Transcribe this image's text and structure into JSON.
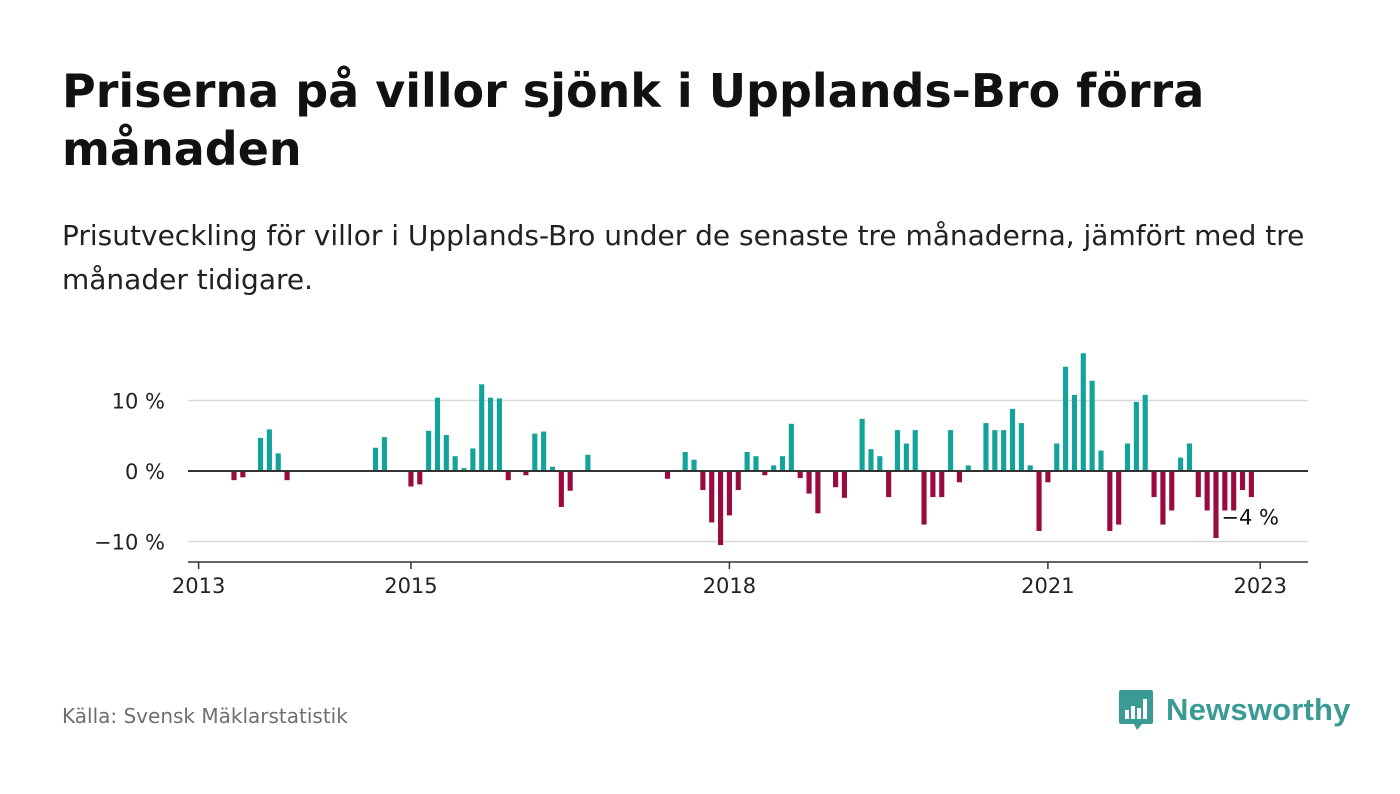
{
  "header": {
    "title": "Priserna på villor sjönk i Upplands-Bro förra månaden",
    "subtitle": "Prisutveckling för villor i Upplands-Bro under de senaste tre månaderna, jämfört med tre månader tidigare."
  },
  "footer": {
    "source": "Källa: Svensk Mäklarstatistik",
    "brand": "Newsworthy",
    "brand_icon": "bar-chart-speech-bubble-icon"
  },
  "colors": {
    "positive": "#14a39a",
    "negative": "#9b0a3e",
    "grid": "#d9d9d9",
    "zero_line": "#333333",
    "brand": "#3a9a94"
  },
  "chart_data": {
    "type": "bar",
    "title": "",
    "xlabel": "",
    "ylabel": "",
    "ylim": [
      -13,
      17
    ],
    "yticks": [
      {
        "value": -10,
        "label": "−10 %"
      },
      {
        "value": 0,
        "label": "0 %"
      },
      {
        "value": 10,
        "label": "10 %"
      }
    ],
    "xticks": [
      {
        "value": 2013.0,
        "label": "2013"
      },
      {
        "value": 2015.0,
        "label": "2015"
      },
      {
        "value": 2018.0,
        "label": "2018"
      },
      {
        "value": 2021.0,
        "label": "2021"
      },
      {
        "value": 2023.0,
        "label": "2023"
      }
    ],
    "grid": true,
    "annotation": {
      "text": "−4 %"
    },
    "series": [
      {
        "points": [
          {
            "x": "2013-05",
            "y": -1.3
          },
          {
            "x": "2013-06",
            "y": -0.9
          },
          {
            "x": "2013-08",
            "y": 4.7
          },
          {
            "x": "2013-09",
            "y": 5.9
          },
          {
            "x": "2013-10",
            "y": 2.5
          },
          {
            "x": "2013-11",
            "y": -1.3
          },
          {
            "x": "2014-09",
            "y": 3.3
          },
          {
            "x": "2014-10",
            "y": 4.8
          },
          {
            "x": "2015-01",
            "y": -2.2
          },
          {
            "x": "2015-02",
            "y": -1.9
          },
          {
            "x": "2015-03",
            "y": 5.7
          },
          {
            "x": "2015-04",
            "y": 10.4
          },
          {
            "x": "2015-05",
            "y": 5.1
          },
          {
            "x": "2015-06",
            "y": 2.1
          },
          {
            "x": "2015-07",
            "y": 0.4
          },
          {
            "x": "2015-08",
            "y": 3.2
          },
          {
            "x": "2015-09",
            "y": 12.3
          },
          {
            "x": "2015-10",
            "y": 10.4
          },
          {
            "x": "2015-11",
            "y": 10.3
          },
          {
            "x": "2015-12",
            "y": -1.3
          },
          {
            "x": "2016-02",
            "y": -0.6
          },
          {
            "x": "2016-03",
            "y": 5.3
          },
          {
            "x": "2016-04",
            "y": 5.6
          },
          {
            "x": "2016-05",
            "y": 0.6
          },
          {
            "x": "2016-06",
            "y": -5.1
          },
          {
            "x": "2016-07",
            "y": -2.8
          },
          {
            "x": "2016-09",
            "y": 2.3
          },
          {
            "x": "2017-06",
            "y": -1.1
          },
          {
            "x": "2017-08",
            "y": 2.7
          },
          {
            "x": "2017-09",
            "y": 1.6
          },
          {
            "x": "2017-10",
            "y": -2.7
          },
          {
            "x": "2017-11",
            "y": -7.3
          },
          {
            "x": "2017-12",
            "y": -10.5
          },
          {
            "x": "2018-01",
            "y": -6.3
          },
          {
            "x": "2018-02",
            "y": -2.7
          },
          {
            "x": "2018-03",
            "y": 2.7
          },
          {
            "x": "2018-04",
            "y": 2.1
          },
          {
            "x": "2018-05",
            "y": -0.6
          },
          {
            "x": "2018-06",
            "y": 0.8
          },
          {
            "x": "2018-07",
            "y": 2.1
          },
          {
            "x": "2018-08",
            "y": 6.7
          },
          {
            "x": "2018-09",
            "y": -1.0
          },
          {
            "x": "2018-10",
            "y": -3.2
          },
          {
            "x": "2018-11",
            "y": -6.0
          },
          {
            "x": "2019-01",
            "y": -2.3
          },
          {
            "x": "2019-02",
            "y": -3.8
          },
          {
            "x": "2019-04",
            "y": 7.4
          },
          {
            "x": "2019-05",
            "y": 3.1
          },
          {
            "x": "2019-06",
            "y": 2.1
          },
          {
            "x": "2019-07",
            "y": -3.7
          },
          {
            "x": "2019-08",
            "y": 5.8
          },
          {
            "x": "2019-09",
            "y": 3.9
          },
          {
            "x": "2019-10",
            "y": 5.8
          },
          {
            "x": "2019-11",
            "y": -7.6
          },
          {
            "x": "2019-12",
            "y": -3.7
          },
          {
            "x": "2020-01",
            "y": -3.7
          },
          {
            "x": "2020-02",
            "y": 5.8
          },
          {
            "x": "2020-03",
            "y": -1.6
          },
          {
            "x": "2020-04",
            "y": 0.8
          },
          {
            "x": "2020-06",
            "y": 6.8
          },
          {
            "x": "2020-07",
            "y": 5.8
          },
          {
            "x": "2020-08",
            "y": 5.8
          },
          {
            "x": "2020-09",
            "y": 8.8
          },
          {
            "x": "2020-10",
            "y": 6.8
          },
          {
            "x": "2020-11",
            "y": 0.8
          },
          {
            "x": "2020-12",
            "y": -8.5
          },
          {
            "x": "2021-01",
            "y": -1.6
          },
          {
            "x": "2021-02",
            "y": 3.9
          },
          {
            "x": "2021-03",
            "y": 14.8
          },
          {
            "x": "2021-04",
            "y": 10.8
          },
          {
            "x": "2021-05",
            "y": 16.7
          },
          {
            "x": "2021-06",
            "y": 12.8
          },
          {
            "x": "2021-07",
            "y": 2.9
          },
          {
            "x": "2021-08",
            "y": -8.5
          },
          {
            "x": "2021-09",
            "y": -7.6
          },
          {
            "x": "2021-10",
            "y": 3.9
          },
          {
            "x": "2021-11",
            "y": 9.8
          },
          {
            "x": "2021-12",
            "y": 10.8
          },
          {
            "x": "2022-01",
            "y": -3.7
          },
          {
            "x": "2022-02",
            "y": -7.6
          },
          {
            "x": "2022-03",
            "y": -5.6
          },
          {
            "x": "2022-04",
            "y": 1.9
          },
          {
            "x": "2022-05",
            "y": 3.9
          },
          {
            "x": "2022-06",
            "y": -3.7
          },
          {
            "x": "2022-07",
            "y": -5.6
          },
          {
            "x": "2022-08",
            "y": -9.5
          },
          {
            "x": "2022-09",
            "y": -5.6
          },
          {
            "x": "2022-10",
            "y": -5.6
          },
          {
            "x": "2022-11",
            "y": -2.7
          },
          {
            "x": "2022-12",
            "y": -3.7
          }
        ]
      }
    ]
  }
}
